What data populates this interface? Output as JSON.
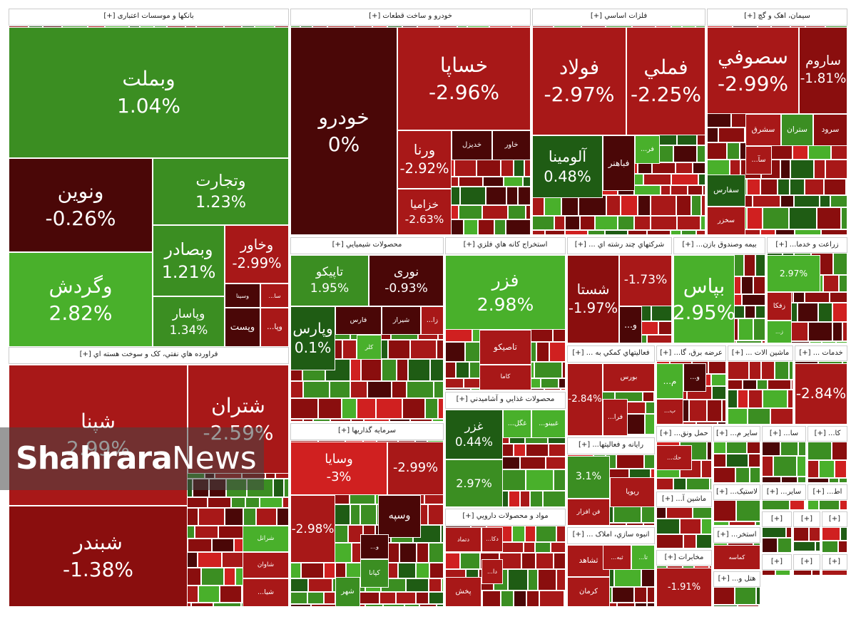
{
  "sectors": [
    {
      "title": "بانکها و موسسات اعتباری [+]",
      "tiles": [
        {
          "label": "وبملت",
          "change": "1.04%"
        },
        {
          "label": "ونوین",
          "change": "-0.26%"
        },
        {
          "label": "وتجارت",
          "change": "1.23%"
        },
        {
          "label": "وگردش",
          "change": "2.82%"
        },
        {
          "label": "وبصادر",
          "change": "1.21%"
        },
        {
          "label": "وپاسار",
          "change": "1.34%"
        },
        {
          "label": "وخاور",
          "change": "-2.99%"
        },
        {
          "label": "وسینا"
        },
        {
          "label": "سا..."
        },
        {
          "label": "وپست"
        },
        {
          "label": "وپا..."
        }
      ]
    },
    {
      "title": "فراورده هاي نفتي، کک و سوخت هسته اي [+]",
      "tiles": [
        {
          "label": "شپنا",
          "change": "2.99%"
        },
        {
          "label": "شتران",
          "change": "-2.59%"
        },
        {
          "label": "شبندر",
          "change": "-1.38%"
        },
        {
          "label": "شرانل"
        },
        {
          "label": "شاوان"
        },
        {
          "label": "شیا..."
        }
      ]
    },
    {
      "title": "خودرو و ساخت قطعات [+]",
      "tiles": [
        {
          "label": "خودرو",
          "change": "0%"
        },
        {
          "label": "خساپا",
          "change": "-2.96%"
        },
        {
          "label": "ورنا",
          "change": "-2.92%"
        },
        {
          "label": "خزامیا",
          "change": "-2.63%"
        },
        {
          "label": "خدیزل"
        },
        {
          "label": "خاور"
        }
      ]
    },
    {
      "title": "فلزات اساسي [+]",
      "tiles": [
        {
          "label": "فولاد",
          "change": "-2.97%"
        },
        {
          "label": "فملي",
          "change": "-2.25%"
        },
        {
          "label": "آلومینا",
          "change": "0.48%"
        },
        {
          "label": "فباهنر"
        },
        {
          "label": "فر..."
        }
      ]
    },
    {
      "title": "سيمان، اهک و گچ [+]",
      "tiles": [
        {
          "label": "سصوفي",
          "change": "-2.99%"
        },
        {
          "label": "ساروم",
          "change": "-1.81%"
        },
        {
          "label": "سشرق"
        },
        {
          "label": "ستران"
        },
        {
          "label": "سرود"
        },
        {
          "label": "سفارس"
        },
        {
          "label": "سخزر"
        },
        {
          "label": "سآ..."
        }
      ]
    },
    {
      "title": "محصولات شيميايي [+]",
      "tiles": [
        {
          "label": "تاپیکو",
          "change": "1.95%"
        },
        {
          "label": "نوری",
          "change": "-0.93%"
        },
        {
          "label": "وپارس",
          "change": "0.1%"
        },
        {
          "label": "فارس"
        },
        {
          "label": "شیراز"
        },
        {
          "label": "زا..."
        },
        {
          "label": "کلر"
        }
      ]
    },
    {
      "title": "استخراج کانه هاي فلزي [+]",
      "tiles": [
        {
          "label": "فزر",
          "change": "2.98%"
        },
        {
          "label": "تاصیکو"
        },
        {
          "label": "کاما"
        }
      ]
    },
    {
      "title": "سرمايه گذاريها [+]",
      "tiles": [
        {
          "label": "وسایا",
          "change": "-3%"
        },
        {
          "change": "-2.99%"
        },
        {
          "label": "وسپه"
        },
        {
          "label": "و..."
        },
        {
          "label": "کپانا"
        },
        {
          "label": "شهر"
        },
        {
          "change": "-2.98%"
        }
      ]
    },
    {
      "title": "محصولات غذايي و آشاميدني [+]",
      "tiles": [
        {
          "label": "غزر",
          "change": "0.44%"
        },
        {
          "change": "2.97%"
        },
        {
          "label": "غگل..."
        },
        {
          "label": "غبینو..."
        }
      ]
    },
    {
      "title": "مواد و محصولات دارويي [+]",
      "tiles": [
        {
          "label": "دتماد"
        },
        {
          "label": "دکا..."
        },
        {
          "label": "پخش"
        },
        {
          "label": "دا..."
        }
      ]
    },
    {
      "title": "شرکتهاي چند رشته اي ... [+]",
      "tiles": [
        {
          "label": "شستا",
          "change": "-1.97%"
        },
        {
          "change": "-1.73%"
        },
        {
          "label": "و..."
        }
      ]
    },
    {
      "title": "بيمه وصندوق بازن... [+]",
      "tiles": [
        {
          "label": "بپاس",
          "change": "2.95%"
        }
      ]
    },
    {
      "title": "زراعت و خدما... [+]",
      "tiles": [
        {
          "change": "2.97%"
        },
        {
          "label": "زفکا"
        },
        {
          "label": "ز..."
        }
      ]
    },
    {
      "title": "فعاليتهاي کمکي به ... [+]",
      "tiles": [
        {
          "label": "بورس"
        },
        {
          "change": "-2.84%"
        },
        {
          "label": "فرا..."
        }
      ]
    },
    {
      "title": "عرضه برق، گا... [+]",
      "tiles": [
        {
          "label": "م..."
        },
        {
          "label": "و..."
        },
        {
          "label": "ب..."
        }
      ]
    },
    {
      "title": "ماشين الات ... [+]",
      "tiles": []
    },
    {
      "title": "خدمات ... [+]",
      "tiles": [
        {
          "change": "-2.84%"
        }
      ]
    },
    {
      "title": "رايانه و فعاليتها... [+]",
      "tiles": [
        {
          "label": "ريويا"
        },
        {
          "label": "فن افزار"
        },
        {
          "change": "3.1%"
        }
      ]
    },
    {
      "title": "انبوه سازي، املاک ... [+]",
      "tiles": [
        {
          "label": "ثشاهد"
        },
        {
          "label": "کرمان"
        },
        {
          "label": "ثبه..."
        },
        {
          "label": "تا..."
        }
      ]
    },
    {
      "title": "حمل ونق... [+]",
      "tiles": [
        {
          "label": "حك..."
        }
      ]
    },
    {
      "title": "ساير م... [+]",
      "tiles": []
    },
    {
      "title": "سا... [+]",
      "tiles": []
    },
    {
      "title": "کا... [+]",
      "tiles": []
    },
    {
      "title": "ماشين آ... [+]",
      "tiles": []
    },
    {
      "title": "مخابرات [+]",
      "tiles": [
        {
          "change": "-1.91%"
        }
      ]
    },
    {
      "title": "لاستيک... [+]",
      "tiles": []
    },
    {
      "title": "ساير... [+]",
      "tiles": []
    },
    {
      "title": "اط... [+]",
      "tiles": []
    },
    {
      "title": "استخر... [+]",
      "tiles": [
        {
          "label": "كماسه"
        }
      ]
    },
    {
      "title": "هتل و... [+]",
      "tiles": []
    },
    {
      "title": "[+]",
      "tiles": []
    },
    {
      "title": "[+]",
      "tiles": []
    },
    {
      "title": "[+]",
      "tiles": []
    },
    {
      "title": "[+]",
      "tiles": []
    },
    {
      "title": "[+]",
      "tiles": []
    },
    {
      "title": "[+]",
      "tiles": []
    }
  ],
  "watermark": {
    "brand": "Shahrara",
    "suffix": "News"
  }
}
